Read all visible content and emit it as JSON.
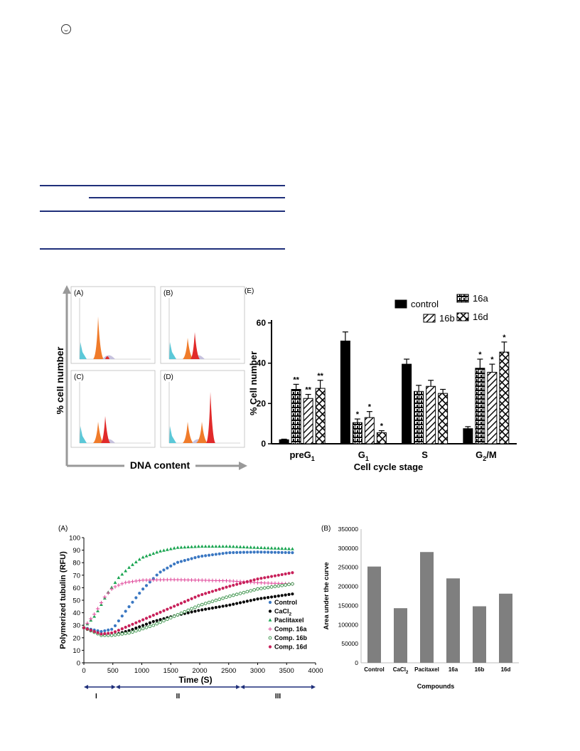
{
  "header": {
    "logo_icon": "journal-logo-icon"
  },
  "colors": {
    "navy": "#1f2f7a",
    "bar_gray": "#7f7f7f",
    "control": "#3a77c2",
    "cacl2": "#000000",
    "paclitaxel": "#1aa551",
    "c16a": "#e0489a",
    "c16b": "#2e8b3e",
    "c16d": "#c8205a"
  },
  "flow": {
    "panels": [
      {
        "label": "(A)",
        "peaks": [
          "orange"
        ]
      },
      {
        "label": "(B)",
        "peaks": [
          "orange",
          "red"
        ]
      },
      {
        "label": "(C)",
        "peaks": [
          "orange",
          "red"
        ]
      },
      {
        "label": "(D)",
        "peaks": [
          "orange",
          "red"
        ]
      }
    ],
    "ylabel": "% cell number",
    "xlabel": "DNA content"
  },
  "chart_data": [
    {
      "type": "bar",
      "panel_label": "(E)",
      "xlabel": "Cell cycle stage",
      "ylabel": "% Cell number",
      "ylim": [
        0,
        60
      ],
      "yticks": [
        0,
        20,
        40,
        60
      ],
      "categories": [
        "preG1",
        "G1",
        "S",
        "G2/M"
      ],
      "category_subscripts": [
        "1",
        "1",
        "",
        "2"
      ],
      "category_main": [
        "preG",
        "G",
        "S",
        "G"
      ],
      "category_suffix": [
        "",
        "",
        "",
        "/M"
      ],
      "legend": [
        "control",
        "16a",
        "16b",
        "16d"
      ],
      "series": [
        {
          "name": "control",
          "values": [
            2,
            51,
            39.5,
            7.5
          ],
          "errors": [
            0.3,
            4.5,
            2.5,
            1
          ]
        },
        {
          "name": "16a",
          "values": [
            27,
            10.5,
            26,
            37.5
          ],
          "errors": [
            2.5,
            1.8,
            3,
            4.5
          ]
        },
        {
          "name": "16b",
          "values": [
            22.5,
            13,
            28.5,
            35.5
          ],
          "errors": [
            2,
            3,
            3,
            4
          ]
        },
        {
          "name": "16d",
          "values": [
            27.5,
            5.5,
            25,
            45.5
          ],
          "errors": [
            4,
            1,
            2,
            5
          ]
        }
      ],
      "significance": [
        [
          "",
          "**",
          "**",
          "**"
        ],
        [
          "",
          "*",
          "*",
          "*"
        ],
        [
          "",
          "",
          "",
          ""
        ],
        [
          "",
          "*",
          "*",
          "*"
        ]
      ]
    },
    {
      "type": "scatter",
      "panel_label": "(A)",
      "xlabel": "Time (S)",
      "ylabel": "Polymerized tubulin (RFU)",
      "xlim": [
        0,
        4000
      ],
      "ylim": [
        0,
        100
      ],
      "xticks": [
        0,
        500,
        1000,
        1500,
        2000,
        2500,
        3000,
        3500,
        4000
      ],
      "yticks": [
        0,
        10,
        20,
        30,
        40,
        50,
        60,
        70,
        80,
        90,
        100
      ],
      "legend": [
        "Control",
        "CaCl2",
        "Paclitaxel",
        "Comp. 16a",
        "Comp. 16b",
        "Comp. 16d"
      ],
      "series": [
        {
          "name": "Control",
          "marker": "circle",
          "points": [
            [
              0,
              28
            ],
            [
              300,
              25
            ],
            [
              500,
              27
            ],
            [
              700,
              40
            ],
            [
              1000,
              58
            ],
            [
              1300,
              72
            ],
            [
              1600,
              80
            ],
            [
              2000,
              85
            ],
            [
              2500,
              88
            ],
            [
              3000,
              88.5
            ],
            [
              3600,
              88
            ]
          ]
        },
        {
          "name": "CaCl2",
          "marker": "circle",
          "points": [
            [
              0,
              28
            ],
            [
              300,
              23
            ],
            [
              500,
              22
            ],
            [
              800,
              26
            ],
            [
              1200,
              33
            ],
            [
              1600,
              38
            ],
            [
              2000,
              42
            ],
            [
              2500,
              46
            ],
            [
              3000,
              51
            ],
            [
              3600,
              55
            ]
          ]
        },
        {
          "name": "Paclitaxel",
          "marker": "triangle",
          "points": [
            [
              0,
              28
            ],
            [
              200,
              38
            ],
            [
              400,
              55
            ],
            [
              600,
              68
            ],
            [
              800,
              77
            ],
            [
              1000,
              84
            ],
            [
              1300,
              89
            ],
            [
              1600,
              92
            ],
            [
              2000,
              93
            ],
            [
              2500,
              93
            ],
            [
              3000,
              92
            ],
            [
              3600,
              91
            ]
          ]
        },
        {
          "name": "Comp. 16a",
          "marker": "plus",
          "points": [
            [
              0,
              28
            ],
            [
              200,
              40
            ],
            [
              350,
              52
            ],
            [
              500,
              60
            ],
            [
              700,
              64
            ],
            [
              1000,
              66
            ],
            [
              1500,
              66.5
            ],
            [
              2000,
              66
            ],
            [
              2500,
              65.5
            ],
            [
              3000,
              64
            ],
            [
              3600,
              63
            ]
          ]
        },
        {
          "name": "Comp. 16b",
          "marker": "open-circle",
          "points": [
            [
              0,
              28
            ],
            [
              300,
              22
            ],
            [
              500,
              22
            ],
            [
              800,
              24
            ],
            [
              1200,
              30
            ],
            [
              1600,
              38
            ],
            [
              2000,
              46
            ],
            [
              2500,
              53
            ],
            [
              3000,
              59
            ],
            [
              3600,
              63
            ]
          ]
        },
        {
          "name": "Comp. 16d",
          "marker": "circle",
          "points": [
            [
              0,
              28
            ],
            [
              300,
              23
            ],
            [
              500,
              24
            ],
            [
              800,
              30
            ],
            [
              1200,
              38
            ],
            [
              1600,
              46
            ],
            [
              2000,
              54
            ],
            [
              2500,
              61
            ],
            [
              3000,
              67
            ],
            [
              3600,
              72
            ]
          ]
        }
      ],
      "phases": [
        {
          "label": "I",
          "from": 0,
          "to": 550
        },
        {
          "label": "II",
          "from": 550,
          "to": 2700
        },
        {
          "label": "III",
          "from": 2700,
          "to": 4000
        }
      ]
    },
    {
      "type": "bar",
      "panel_label": "(B)",
      "xlabel": "Compounds",
      "ylabel": "Area under the curve",
      "ylim": [
        0,
        350000
      ],
      "yticks": [
        0,
        50000,
        100000,
        150000,
        200000,
        250000,
        300000,
        350000
      ],
      "categories": [
        "Control",
        "CaCl2",
        "Pacitaxel",
        "16a",
        "16b",
        "16d"
      ],
      "category_main": [
        "Control",
        "CaCl",
        "Pacitaxel",
        "16a",
        "16b",
        "16d"
      ],
      "category_subscripts": [
        "",
        "2",
        "",
        "",
        "",
        ""
      ],
      "values": [
        252000,
        143000,
        290000,
        221000,
        148000,
        181000
      ]
    }
  ]
}
